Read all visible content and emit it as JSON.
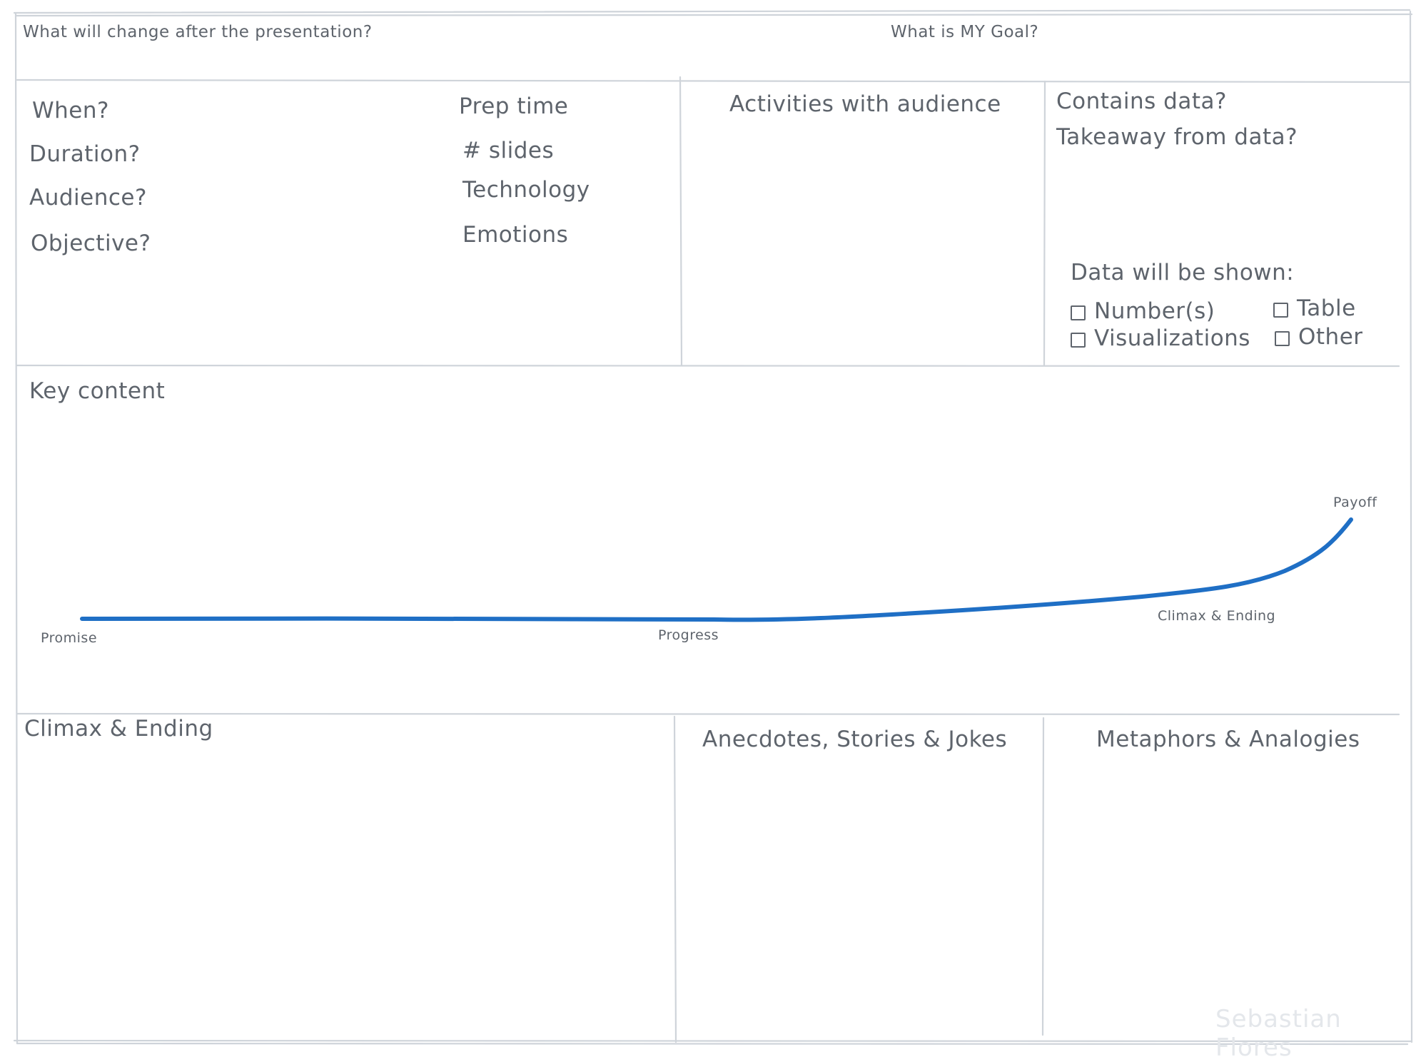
{
  "header": {
    "change_question": "What will change after the presentation?",
    "goal_question": "What is MY Goal?"
  },
  "logistics": {
    "left": [
      "When?",
      "Duration?",
      "Audience?",
      "Objective?"
    ],
    "right": [
      "Prep time",
      "# slides",
      "Technology",
      "Emotions"
    ]
  },
  "activities": {
    "title": "Activities with audience"
  },
  "data_box": {
    "contains": "Contains data?",
    "takeaway": "Takeaway from data?",
    "shown_label": "Data will be shown:",
    "options": [
      "Number(s)",
      "Table",
      "Visualizations",
      "Other"
    ]
  },
  "key_content": {
    "title": "Key content",
    "curve_color": "#1f6fc5",
    "labels": {
      "promise": "Promise",
      "progress": "Progress",
      "climax": "Climax & Ending",
      "payoff": "Payoff"
    }
  },
  "bottom": {
    "climax": "Climax & Ending",
    "anecdotes": "Anecdotes, Stories & Jokes",
    "metaphors": "Metaphors & Analogies"
  },
  "credit": "Sebastian Flores"
}
